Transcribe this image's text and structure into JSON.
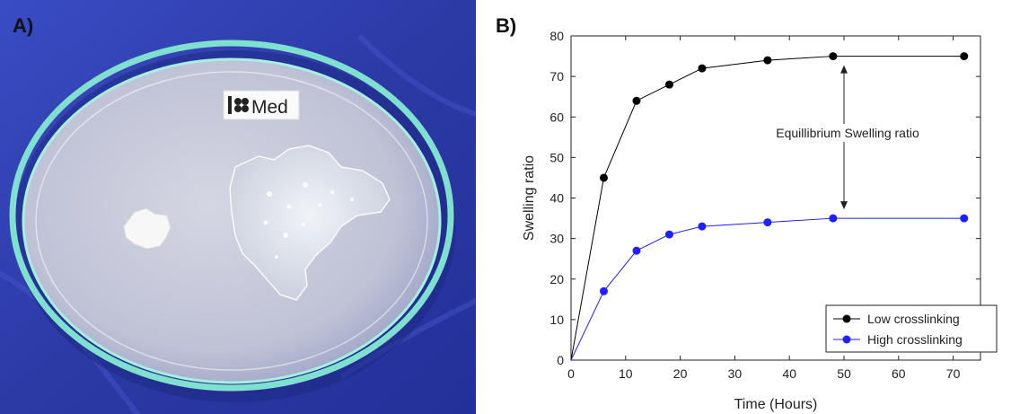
{
  "panels": {
    "a_label": "A)",
    "b_label": "B)"
  },
  "photo": {
    "label_card_text": "Med",
    "colors": {
      "background": "#2f3fae",
      "dish_rim": "#7fe0cf",
      "water": "#c6c8d8",
      "gel": "#e8edf5",
      "powder": "#f7f7f7"
    }
  },
  "chart_data": {
    "type": "line",
    "xlabel": "Time (Hours)",
    "ylabel": "Swelling ratio",
    "xlim": [
      0,
      75
    ],
    "ylim": [
      0,
      80
    ],
    "xticks": [
      0,
      10,
      20,
      30,
      40,
      50,
      60,
      70
    ],
    "yticks": [
      0,
      10,
      20,
      30,
      40,
      50,
      60,
      70,
      80
    ],
    "grid": false,
    "legend_position": "bottom-right",
    "series": [
      {
        "name": "Low crosslinking",
        "color": "#000000",
        "x": [
          0,
          6,
          12,
          18,
          24,
          36,
          48,
          72
        ],
        "y": [
          0,
          45,
          64,
          68,
          72,
          74,
          75,
          75
        ]
      },
      {
        "name": "High crosslinking",
        "color": "#1f1fff",
        "x": [
          0,
          6,
          12,
          18,
          24,
          36,
          48,
          72
        ],
        "y": [
          0,
          17,
          27,
          31,
          33,
          34,
          35,
          35
        ]
      }
    ],
    "annotation": {
      "text": "Equillibrium Swelling ratio",
      "x": 50,
      "y_from": 75,
      "y_to": 35
    }
  }
}
